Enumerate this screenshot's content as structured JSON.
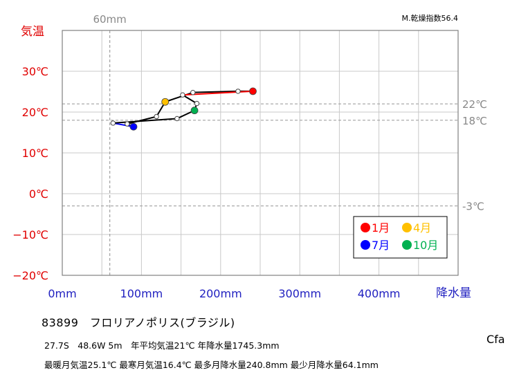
{
  "chart_data": {
    "type": "line",
    "title": "",
    "xlabel": "降水量",
    "ylabel": "気温",
    "xlim": [
      0,
      500
    ],
    "ylim": [
      -20,
      40
    ],
    "x_ticks": [
      {
        "value": 0,
        "label": "0mm"
      },
      {
        "value": 100,
        "label": "100mm"
      },
      {
        "value": 200,
        "label": "200mm"
      },
      {
        "value": 300,
        "label": "300mm"
      },
      {
        "value": 400,
        "label": "400mm"
      }
    ],
    "y_ticks": [
      {
        "value": 30,
        "label": "30℃"
      },
      {
        "value": 20,
        "label": "20℃"
      },
      {
        "value": 10,
        "label": "10℃"
      },
      {
        "value": 0,
        "label": "0℃"
      },
      {
        "value": -10,
        "label": "−10℃"
      },
      {
        "value": -20,
        "label": "−20℃"
      }
    ],
    "reference_lines": {
      "vertical": [
        {
          "value": 60,
          "label": "60mm"
        }
      ],
      "horizontal": [
        {
          "value": 22,
          "label": "22℃"
        },
        {
          "value": 18,
          "label": "18℃"
        },
        {
          "value": -3,
          "label": "-3℃"
        }
      ]
    },
    "grid": true,
    "aridity_index_label": "M.乾燥指数56.4",
    "legend_position": "bottom-right",
    "legend": [
      {
        "label": "1月",
        "color": "#ff0000"
      },
      {
        "label": "4月",
        "color": "#ffc000"
      },
      {
        "label": "7月",
        "color": "#0000ff"
      },
      {
        "label": "10月",
        "color": "#00b050"
      }
    ],
    "series": [
      {
        "points": [
          {
            "month": 1,
            "precip": 240.8,
            "temp": 25.1
          },
          {
            "month": 2,
            "precip": 222,
            "temp": 25.1
          },
          {
            "month": 3,
            "precip": 165,
            "temp": 24.8
          },
          {
            "month": 4,
            "precip": 130,
            "temp": 22.5
          },
          {
            "month": 5,
            "precip": 119,
            "temp": 18.9
          },
          {
            "month": 6,
            "precip": 82,
            "temp": 17.1
          },
          {
            "month": 7,
            "precip": 90,
            "temp": 16.4
          },
          {
            "month": 8,
            "precip": 64.1,
            "temp": 17.3
          },
          {
            "month": 9,
            "precip": 145,
            "temp": 18.4
          },
          {
            "month": 10,
            "precip": 167,
            "temp": 20.4
          },
          {
            "month": 11,
            "precip": 170,
            "temp": 22.1
          },
          {
            "month": 12,
            "precip": 152,
            "temp": 24.2
          }
        ]
      }
    ]
  },
  "station": {
    "name": "83899　フロリアノポリス(ブラジル)",
    "info_line1": "27.7S　48.6W 5m　年平均気温21℃ 年降水量1745.3mm",
    "info_line2": "最暖月気温25.1℃ 最寒月気温16.4℃ 最多月降水量240.8mm 最少月降水量64.1mm",
    "climate": "Cfa"
  }
}
